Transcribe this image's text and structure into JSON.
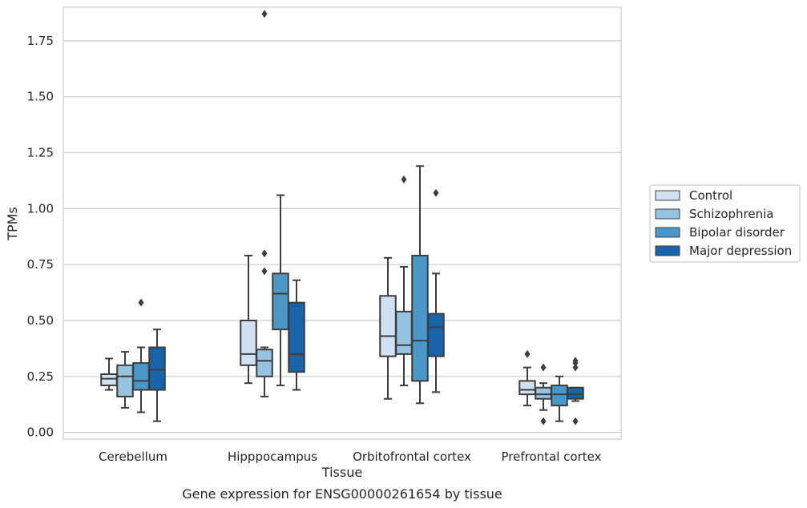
{
  "chart_data": {
    "type": "box",
    "xlabel": "Tissue",
    "ylabel": "TPMs",
    "caption": "Gene expression for ENSG00000261654 by tissue",
    "ylim": [
      -0.03,
      1.9
    ],
    "yticks": [
      "0.00",
      "0.25",
      "0.50",
      "0.75",
      "1.00",
      "1.25",
      "1.50",
      "1.75"
    ],
    "grid": true,
    "legend_position": "right",
    "categories": [
      "Cerebellum",
      "Hipppocampus",
      "Orbitofrontal cortex",
      "Prefrontal cortex"
    ],
    "series": [
      {
        "name": "Control",
        "color": "#d0e1f2",
        "boxes": [
          {
            "whislo": 0.19,
            "q1": 0.21,
            "med": 0.24,
            "q3": 0.26,
            "whishi": 0.33,
            "fliers": []
          },
          {
            "whislo": 0.22,
            "q1": 0.3,
            "med": 0.35,
            "q3": 0.5,
            "whishi": 0.79,
            "fliers": []
          },
          {
            "whislo": 0.15,
            "q1": 0.34,
            "med": 0.43,
            "q3": 0.61,
            "whishi": 0.78,
            "fliers": []
          },
          {
            "whislo": 0.12,
            "q1": 0.17,
            "med": 0.19,
            "q3": 0.23,
            "whishi": 0.29,
            "fliers": [
              0.35
            ]
          }
        ]
      },
      {
        "name": "Schizophrenia",
        "color": "#94c4df",
        "boxes": [
          {
            "whislo": 0.11,
            "q1": 0.16,
            "med": 0.25,
            "q3": 0.3,
            "whishi": 0.36,
            "fliers": []
          },
          {
            "whislo": 0.16,
            "q1": 0.25,
            "med": 0.32,
            "q3": 0.37,
            "whishi": 0.38,
            "fliers": [
              1.87,
              0.8,
              0.72
            ]
          },
          {
            "whislo": 0.21,
            "q1": 0.35,
            "med": 0.39,
            "q3": 0.54,
            "whishi": 0.74,
            "fliers": [
              1.13
            ]
          },
          {
            "whislo": 0.1,
            "q1": 0.15,
            "med": 0.17,
            "q3": 0.2,
            "whishi": 0.22,
            "fliers": [
              0.29,
              0.05
            ]
          }
        ]
      },
      {
        "name": "Bipolar disorder",
        "color": "#4a98c9",
        "boxes": [
          {
            "whislo": 0.09,
            "q1": 0.19,
            "med": 0.23,
            "q3": 0.31,
            "whishi": 0.38,
            "fliers": [
              0.58
            ]
          },
          {
            "whislo": 0.21,
            "q1": 0.46,
            "med": 0.62,
            "q3": 0.71,
            "whishi": 1.06,
            "fliers": []
          },
          {
            "whislo": 0.13,
            "q1": 0.23,
            "med": 0.41,
            "q3": 0.79,
            "whishi": 1.19,
            "fliers": []
          },
          {
            "whislo": 0.05,
            "q1": 0.12,
            "med": 0.17,
            "q3": 0.21,
            "whishi": 0.25,
            "fliers": []
          }
        ]
      },
      {
        "name": "Major depression",
        "color": "#1764ab",
        "boxes": [
          {
            "whislo": 0.05,
            "q1": 0.19,
            "med": 0.28,
            "q3": 0.38,
            "whishi": 0.46,
            "fliers": []
          },
          {
            "whislo": 0.19,
            "q1": 0.27,
            "med": 0.35,
            "q3": 0.58,
            "whishi": 0.68,
            "fliers": []
          },
          {
            "whislo": 0.18,
            "q1": 0.34,
            "med": 0.47,
            "q3": 0.53,
            "whishi": 0.71,
            "fliers": [
              1.07
            ]
          },
          {
            "whislo": 0.14,
            "q1": 0.15,
            "med": 0.17,
            "q3": 0.2,
            "whishi": 0.2,
            "fliers": [
              0.32,
              0.31,
              0.29,
              0.05
            ]
          }
        ]
      }
    ]
  }
}
